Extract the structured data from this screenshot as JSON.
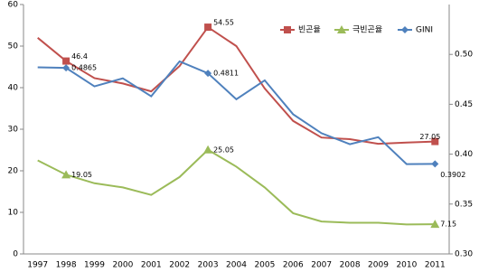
{
  "chart_data": {
    "type": "line",
    "categories": [
      "1997",
      "1998",
      "1999",
      "2000",
      "2001",
      "2002",
      "2003",
      "2004",
      "2005",
      "2006",
      "2007",
      "2008",
      "2009",
      "2010",
      "2011"
    ],
    "ylim": [
      0,
      60
    ],
    "yticks": [
      0,
      10,
      20,
      30,
      40,
      50,
      60
    ],
    "y2lim": [
      0.3,
      0.55
    ],
    "y2ticks": [
      {
        "value": 0.3,
        "label": "0.30"
      },
      {
        "value": 0.35,
        "label": "0.35"
      },
      {
        "value": 0.4,
        "label": "0.40"
      },
      {
        "value": 0.45,
        "label": "0.45"
      },
      {
        "value": 0.5,
        "label": "0.50"
      }
    ],
    "legend": "top-right",
    "series": [
      {
        "name": "빈곤율",
        "color": "#c0504d",
        "marker": "square",
        "values": [
          52,
          46.4,
          42.3,
          41,
          39.1,
          45.2,
          54.55,
          50,
          39.8,
          32,
          28,
          27.6,
          26.5,
          26.8,
          27.05
        ],
        "value_labels": [
          null,
          "46.4",
          null,
          null,
          null,
          null,
          "54.55",
          null,
          null,
          null,
          null,
          null,
          null,
          null,
          "27.05"
        ]
      },
      {
        "name": "극빈곤율",
        "color": "#9bbb59",
        "marker": "triangle",
        "values": [
          22.5,
          19.05,
          17,
          16,
          14.2,
          18.5,
          25.05,
          21,
          16,
          9.8,
          7.8,
          7.5,
          7.5,
          7.1,
          7.15
        ],
        "value_labels": [
          null,
          "19.05",
          null,
          null,
          null,
          null,
          "25.05",
          null,
          null,
          null,
          null,
          null,
          null,
          null,
          "7.15"
        ]
      },
      {
        "name": "GINI",
        "color": "#4f81bd",
        "marker": "diamond",
        "axis": "y2",
        "values": [
          0.487,
          0.4865,
          0.468,
          0.476,
          0.458,
          0.493,
          0.4811,
          0.455,
          0.474,
          0.44,
          0.421,
          0.41,
          0.417,
          0.39,
          0.3902
        ],
        "value_labels": [
          null,
          "0.4865",
          null,
          null,
          null,
          null,
          "0.4811",
          null,
          null,
          null,
          null,
          null,
          null,
          null,
          "0.3902"
        ]
      }
    ]
  }
}
